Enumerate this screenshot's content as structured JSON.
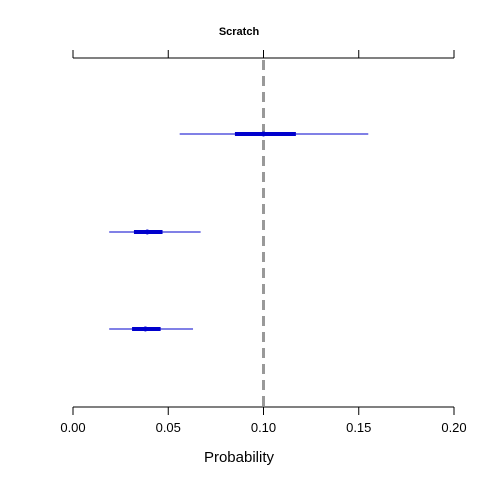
{
  "chart_data": {
    "type": "forest",
    "title": "Scratch",
    "xlabel": "Probability",
    "ylabel": "",
    "xlim": [
      0,
      0.2
    ],
    "x_ticks": [
      0.0,
      0.05,
      0.1,
      0.15,
      0.2
    ],
    "x_tick_labels": [
      "0.00",
      "0.05",
      "0.10",
      "0.15",
      "0.20"
    ],
    "reference_line": 0.1,
    "grid": false,
    "colors": {
      "interval": "#0000cd",
      "reference": "#999999",
      "axis": "#000000"
    },
    "intervals": [
      {
        "point": 0.1,
        "inner": [
          0.085,
          0.117
        ],
        "outer": [
          0.056,
          0.155
        ]
      },
      {
        "point": 0.039,
        "inner": [
          0.032,
          0.047
        ],
        "outer": [
          0.019,
          0.067
        ]
      },
      {
        "point": 0.038,
        "inner": [
          0.031,
          0.046
        ],
        "outer": [
          0.019,
          0.063
        ]
      }
    ]
  }
}
